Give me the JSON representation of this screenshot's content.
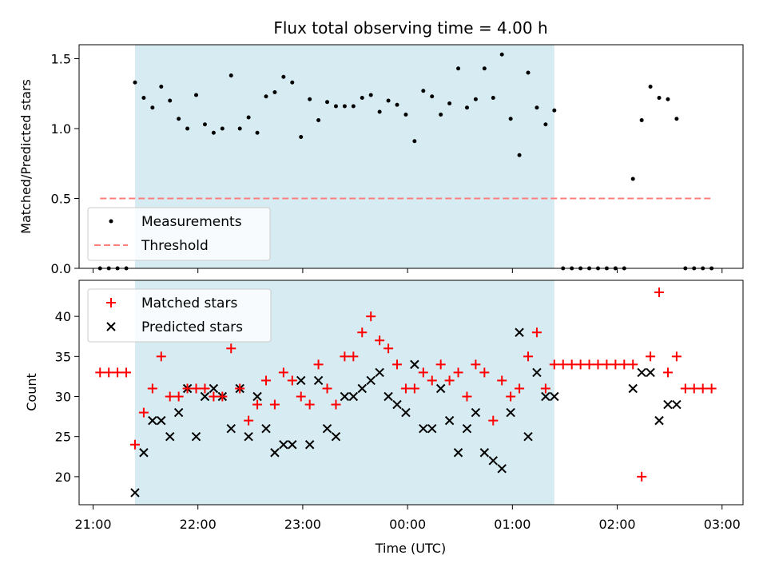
{
  "chart_data": [
    {
      "type": "scatter",
      "title": "Flux total observing time = 4.00 h",
      "xlabel": "",
      "ylabel": "Matched/Predicted stars",
      "xlim": [
        "20:52",
        "03:12"
      ],
      "ylim": [
        0,
        1.6
      ],
      "yticks": [
        "0.0",
        "0.5",
        "1.0",
        "1.5"
      ],
      "xticks": [
        "21:00",
        "22:00",
        "23:00",
        "00:00",
        "01:00",
        "02:00",
        "03:00"
      ],
      "shaded_interval": [
        "21:24",
        "01:24"
      ],
      "legend_position": "lower-left",
      "series": [
        {
          "name": "Measurements",
          "color": "#000000",
          "x": [
            "21:04",
            "21:09",
            "21:14",
            "21:19",
            "21:24",
            "21:29",
            "21:34",
            "21:39",
            "21:44",
            "21:49",
            "21:54",
            "21:59",
            "22:04",
            "22:09",
            "22:14",
            "22:19",
            "22:24",
            "22:29",
            "22:34",
            "22:39",
            "22:44",
            "22:49",
            "22:54",
            "22:59",
            "23:04",
            "23:09",
            "23:14",
            "23:19",
            "23:24",
            "23:29",
            "23:34",
            "23:39",
            "23:44",
            "23:49",
            "23:54",
            "23:59",
            "00:04",
            "00:09",
            "00:14",
            "00:19",
            "00:24",
            "00:29",
            "00:34",
            "00:39",
            "00:44",
            "00:49",
            "00:54",
            "00:59",
            "01:04",
            "01:09",
            "01:14",
            "01:19",
            "01:24",
            "01:29",
            "01:34",
            "01:39",
            "01:44",
            "01:49",
            "01:54",
            "01:59",
            "02:04",
            "02:09",
            "02:14",
            "02:19",
            "02:24",
            "02:29",
            "02:34",
            "02:39",
            "02:44",
            "02:49",
            "02:54"
          ],
          "y": [
            0,
            0,
            0,
            0,
            1.33,
            1.22,
            1.15,
            1.3,
            1.2,
            1.07,
            1.0,
            1.24,
            1.03,
            0.97,
            1.0,
            1.38,
            1.0,
            1.08,
            0.97,
            1.23,
            1.26,
            1.37,
            1.33,
            0.94,
            1.21,
            1.06,
            1.19,
            1.16,
            1.16,
            1.16,
            1.22,
            1.24,
            1.12,
            1.2,
            1.17,
            1.1,
            0.91,
            1.27,
            1.23,
            1.1,
            1.18,
            1.43,
            1.15,
            1.21,
            1.43,
            1.22,
            1.53,
            1.07,
            0.81,
            1.4,
            1.15,
            1.03,
            1.13,
            0,
            0,
            0,
            0,
            0,
            0,
            0,
            0,
            0.64,
            1.06,
            1.3,
            1.22,
            1.21,
            1.07,
            0,
            0,
            0,
            0
          ]
        },
        {
          "name": "Threshold",
          "color": "#ff7f7f",
          "style": "dashed",
          "x": [
            "21:04",
            "02:54"
          ],
          "y": [
            0.5,
            0.5
          ]
        }
      ]
    },
    {
      "type": "scatter",
      "title": "",
      "xlabel": "Time (UTC)",
      "ylabel": "Count",
      "xlim": [
        "20:52",
        "03:12"
      ],
      "ylim": [
        16.5,
        44.5
      ],
      "yticks": [
        "20",
        "25",
        "30",
        "35",
        "40"
      ],
      "xticks": [
        "21:00",
        "22:00",
        "23:00",
        "00:00",
        "01:00",
        "02:00",
        "03:00"
      ],
      "shaded_interval": [
        "21:24",
        "01:24"
      ],
      "legend_position": "top-left",
      "x": [
        "21:04",
        "21:09",
        "21:14",
        "21:19",
        "21:24",
        "21:29",
        "21:34",
        "21:39",
        "21:44",
        "21:49",
        "21:54",
        "21:59",
        "22:04",
        "22:09",
        "22:14",
        "22:19",
        "22:24",
        "22:29",
        "22:34",
        "22:39",
        "22:44",
        "22:49",
        "22:54",
        "22:59",
        "23:04",
        "23:09",
        "23:14",
        "23:19",
        "23:24",
        "23:29",
        "23:34",
        "23:39",
        "23:44",
        "23:49",
        "23:54",
        "23:59",
        "00:04",
        "00:09",
        "00:14",
        "00:19",
        "00:24",
        "00:29",
        "00:34",
        "00:39",
        "00:44",
        "00:49",
        "00:54",
        "00:59",
        "01:04",
        "01:09",
        "01:14",
        "01:19",
        "01:24",
        "01:29",
        "01:34",
        "01:39",
        "01:44",
        "01:49",
        "01:54",
        "01:59",
        "02:04",
        "02:09",
        "02:14",
        "02:19",
        "02:24",
        "02:29",
        "02:34",
        "02:39",
        "02:44",
        "02:49",
        "02:54"
      ],
      "series": [
        {
          "name": "Matched stars",
          "color": "#ff0000",
          "marker": "plus",
          "y": [
            33,
            33,
            33,
            33,
            24,
            28,
            31,
            35,
            30,
            30,
            31,
            31,
            31,
            30,
            30,
            36,
            31,
            27,
            29,
            32,
            29,
            33,
            32,
            30,
            29,
            34,
            31,
            29,
            35,
            35,
            38,
            40,
            37,
            36,
            34,
            31,
            31,
            33,
            32,
            34,
            32,
            33,
            30,
            34,
            33,
            27,
            32,
            30,
            31,
            35,
            38,
            31,
            34,
            34,
            34,
            34,
            34,
            34,
            34,
            34,
            34,
            34,
            20,
            35,
            43,
            33,
            35,
            31,
            31,
            31,
            31
          ]
        },
        {
          "name": "Predicted stars",
          "color": "#000000",
          "marker": "x",
          "y": [
            null,
            null,
            null,
            null,
            18,
            23,
            27,
            27,
            25,
            28,
            31,
            25,
            30,
            31,
            30,
            26,
            31,
            25,
            30,
            26,
            23,
            24,
            24,
            32,
            24,
            32,
            26,
            25,
            30,
            30,
            31,
            32,
            33,
            30,
            29,
            28,
            34,
            26,
            26,
            31,
            27,
            23,
            26,
            28,
            23,
            22,
            21,
            28,
            38,
            25,
            33,
            30,
            30,
            null,
            null,
            null,
            null,
            null,
            null,
            null,
            null,
            31,
            33,
            33,
            27,
            29,
            29,
            null,
            null,
            null,
            null
          ]
        }
      ]
    }
  ]
}
